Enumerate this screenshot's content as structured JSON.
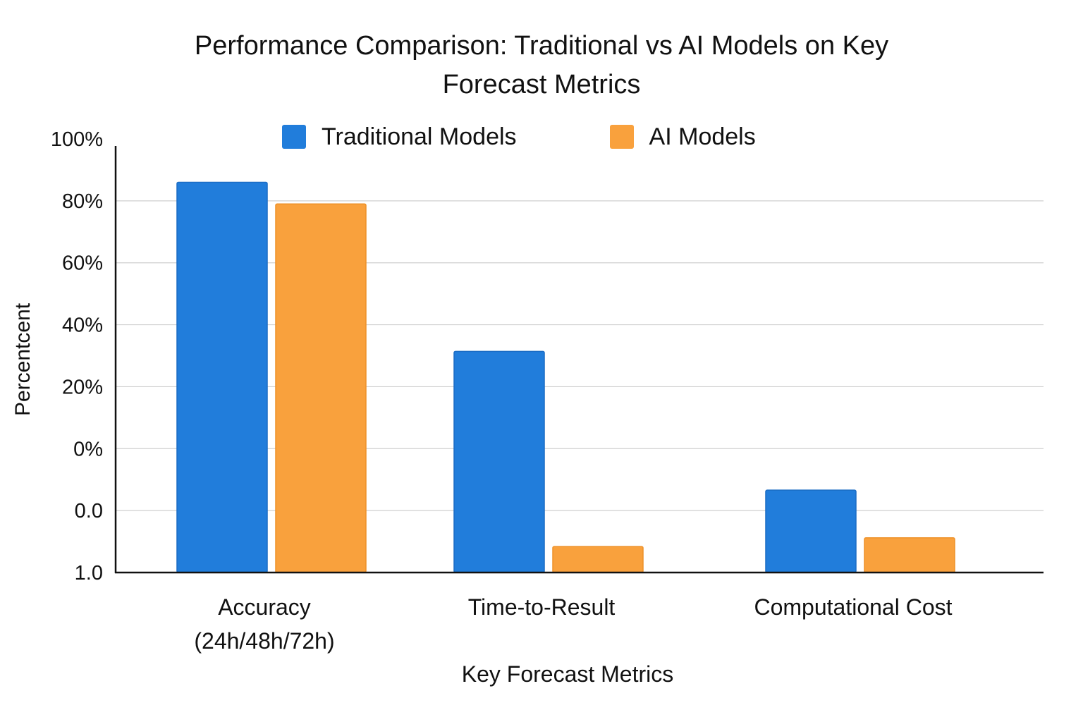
{
  "chart_data": {
    "type": "bar",
    "title": "Performance Comparison: Traditional vs AI Models on Key Forecast Metrics",
    "title_lines": [
      "Performance Comparison: Traditional vs AI Models on Key",
      "Forecast Metrics"
    ],
    "xlabel": "Key Forecast Metrics",
    "ylabel": "Percentcent",
    "ytick_labels": [
      "1.0",
      "0.0",
      "0%",
      "20%",
      "40%",
      "60%",
      "80%",
      "100%"
    ],
    "ylim": [
      0,
      100
    ],
    "categories": [
      "Accuracy (24h/48h/72h)",
      "Time-to-Result",
      "Computational Cost"
    ],
    "category_lines": [
      [
        "Accuracy",
        "(24h/48h/72h)"
      ],
      [
        "Time-to-Result"
      ],
      [
        "Computational Cost"
      ]
    ],
    "series": [
      {
        "name": "Traditional Models",
        "color": "#217DDB",
        "values": [
          90,
          51,
          19
        ]
      },
      {
        "name": "AI Models",
        "color": "#F9A13D",
        "values": [
          85,
          6,
          8
        ]
      }
    ],
    "grid": true,
    "legend_position": "top"
  }
}
